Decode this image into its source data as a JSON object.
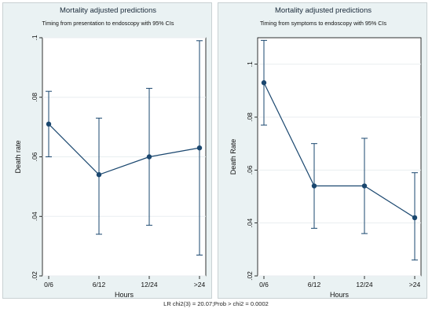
{
  "chart_data": [
    {
      "type": "line",
      "title": "Mortality adjusted predictions",
      "subtitle": "Timing from presentation to endoscopy with 95% CIs",
      "xlabel": "Hours",
      "ylabel": "Death rate",
      "categories": [
        "0/6",
        "6/12",
        "12/24",
        ">24"
      ],
      "ylim": [
        0.02,
        0.1
      ],
      "yticks": [
        0.02,
        0.04,
        0.06,
        0.08,
        0.1
      ],
      "ytick_labels": [
        ".02",
        ".04",
        ".06",
        ".08",
        ".1"
      ],
      "grid": true,
      "series": [
        {
          "values": [
            0.071,
            0.054,
            0.06,
            0.063
          ],
          "ci_low": [
            0.06,
            0.034,
            0.037,
            0.027
          ],
          "ci_high": [
            0.082,
            0.073,
            0.083,
            0.099
          ]
        }
      ],
      "color": "#1a476f"
    },
    {
      "type": "line",
      "title": "Mortality adjusted predictions",
      "subtitle": "Timing from symptoms to endoscopy  with 95% CIs",
      "xlabel": "Hours",
      "ylabel": "Death Rate",
      "categories": [
        "0/6",
        "6/12",
        "12/24",
        ">24"
      ],
      "ylim": [
        0.02,
        0.11
      ],
      "yticks": [
        0.02,
        0.04,
        0.06,
        0.08,
        0.1
      ],
      "ytick_labels": [
        ".02",
        ".04",
        ".06",
        ".08",
        ".1"
      ],
      "grid": true,
      "series": [
        {
          "values": [
            0.093,
            0.054,
            0.054,
            0.042
          ],
          "ci_low": [
            0.077,
            0.038,
            0.036,
            0.026
          ],
          "ci_high": [
            0.109,
            0.07,
            0.072,
            0.059
          ]
        }
      ],
      "color": "#1a476f"
    }
  ],
  "footnote": "LR chi2(3) =  20.07;Prob > chi2 = 0.0002"
}
